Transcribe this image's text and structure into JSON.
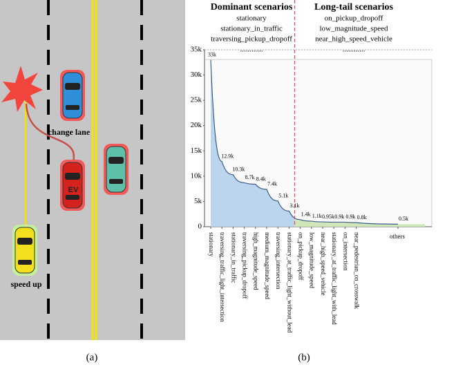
{
  "panel_a": {
    "labels": {
      "change_lane": "change lane",
      "ev": "EV",
      "speed_up": "speed up"
    },
    "caption": "(a)"
  },
  "panel_b_caption": "(b)",
  "groups": {
    "dominant": {
      "title": "Dominant scenarios",
      "items": [
        "stationary",
        "stationary_in_traffic",
        "traversing_pickup_dropoff",
        "............"
      ]
    },
    "long_tail": {
      "title": "Long-tail scenarios",
      "items": [
        "on_pickup_dropoff",
        "low_magnitude_speed",
        "near_high_speed_vehicle",
        "............"
      ]
    }
  },
  "chart_data": {
    "type": "area",
    "categories": [
      "stationary",
      "traversing_traffic_light_intersection",
      "stationary_in_traffic",
      "traversing_pickup_dropoff",
      "high_magnitude_speed",
      "medium_magnitude_speed",
      "traversing_intersection",
      "stationary_at_traffic_light_without_lead",
      "on_pickup_dropoff",
      "low_magnitude_speed",
      "near_high_speed_vehicle",
      "stationary_at_traffic_light_with_lead",
      "on_intersection",
      "near_pedestrian_on_crosswalk",
      "others"
    ],
    "values": [
      33000,
      12900,
      10300,
      8700,
      8400,
      7400,
      5100,
      3100,
      1400,
      1100,
      950,
      900,
      900,
      800,
      500
    ],
    "value_labels": [
      "33k",
      "12.9k",
      "10.3k",
      "8.7k",
      "8.4k",
      "7.4k",
      "5.1k",
      "3.1k",
      "1.4k",
      "1.1k",
      "0.95k",
      "0.9k",
      "0.9k",
      "0.8k",
      "0.5k"
    ],
    "colors": {
      "dominant": "#bcd5ee",
      "long_tail": "#cfe6b8",
      "line": "#3a5f8f",
      "divider": "#d9534f"
    },
    "ylim": [
      0,
      35000
    ],
    "yticks": [
      {
        "value": 0,
        "label": "0"
      },
      {
        "value": 5000,
        "label": "5k"
      },
      {
        "value": 10000,
        "label": "10k"
      },
      {
        "value": 15000,
        "label": "15k"
      },
      {
        "value": 20000,
        "label": "20k"
      },
      {
        "value": 25000,
        "label": "25k"
      },
      {
        "value": 30000,
        "label": "30k"
      },
      {
        "value": 35000,
        "label": "35k"
      }
    ]
  }
}
